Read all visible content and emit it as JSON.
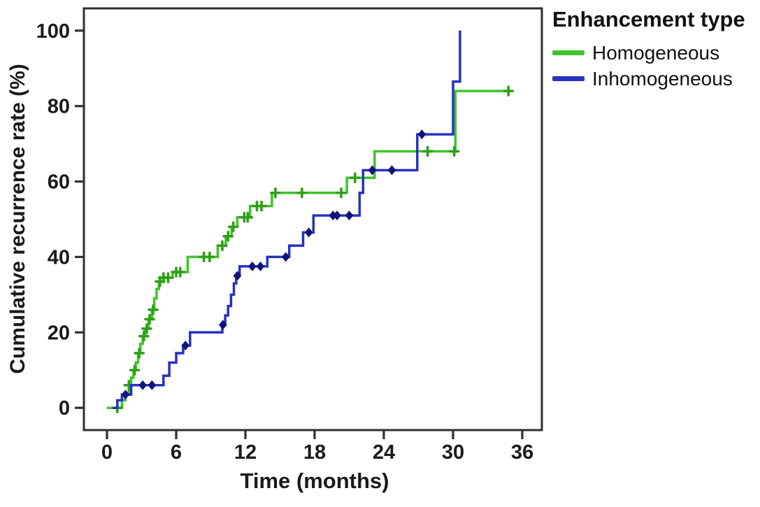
{
  "figure": {
    "background": "#ffffff",
    "axis_color": "#2f2f2f",
    "text_color": "#1a1a1a"
  },
  "chart_data": {
    "type": "line",
    "subtype": "kaplan-meier-step",
    "title": "",
    "xlabel": "Time (months)",
    "ylabel": "Cumulative recurrence rate (%)",
    "x_ticks": [
      0,
      6,
      12,
      18,
      24,
      30,
      36
    ],
    "y_ticks": [
      0,
      20,
      40,
      60,
      80,
      100
    ],
    "xlim": [
      -2.0,
      37.7
    ],
    "ylim": [
      -5.9,
      105.9
    ],
    "grid": false,
    "legend": {
      "title": "Enhancement type",
      "position": "top-right-outside",
      "entries": [
        {
          "label": "Homogeneous",
          "color": "#3fc32a"
        },
        {
          "label": "Inhomogeneous",
          "color": "#2632c0"
        }
      ]
    },
    "series": [
      {
        "name": "Homogeneous",
        "color": "#3fc32a",
        "censor_color": "#2da015",
        "censor_shape": "plus",
        "steps": [
          [
            0.0,
            0
          ],
          [
            1.3,
            2
          ],
          [
            1.6,
            4
          ],
          [
            1.9,
            6
          ],
          [
            2.1,
            8
          ],
          [
            2.3,
            10
          ],
          [
            2.5,
            12
          ],
          [
            2.7,
            14.5
          ],
          [
            2.9,
            17
          ],
          [
            3.1,
            19
          ],
          [
            3.3,
            21
          ],
          [
            3.6,
            23.5
          ],
          [
            3.9,
            26
          ],
          [
            4.1,
            29
          ],
          [
            4.3,
            31.5
          ],
          [
            4.5,
            33.5
          ],
          [
            4.9,
            34.5
          ],
          [
            5.7,
            36
          ],
          [
            7.0,
            40
          ],
          [
            9.6,
            43
          ],
          [
            10.3,
            45.5
          ],
          [
            10.8,
            48
          ],
          [
            11.3,
            50.5
          ],
          [
            12.4,
            53.5
          ],
          [
            14.3,
            57
          ],
          [
            20.8,
            61
          ],
          [
            23.2,
            68
          ],
          [
            30.2,
            84
          ],
          [
            34.8,
            84
          ]
        ],
        "censors": [
          [
            0.9,
            0
          ],
          [
            1.9,
            6
          ],
          [
            2.4,
            10
          ],
          [
            2.8,
            14.5
          ],
          [
            3.2,
            19
          ],
          [
            3.45,
            21
          ],
          [
            3.7,
            23.5
          ],
          [
            4.0,
            26
          ],
          [
            4.6,
            33.5
          ],
          [
            4.9,
            34.5
          ],
          [
            5.3,
            34.5
          ],
          [
            6.0,
            36
          ],
          [
            6.35,
            36
          ],
          [
            8.4,
            40
          ],
          [
            8.9,
            40
          ],
          [
            10.0,
            43
          ],
          [
            10.5,
            45.5
          ],
          [
            10.95,
            48
          ],
          [
            11.9,
            50.5
          ],
          [
            12.2,
            50.5
          ],
          [
            13.0,
            53.5
          ],
          [
            13.4,
            53.5
          ],
          [
            14.6,
            57
          ],
          [
            16.9,
            57
          ],
          [
            20.3,
            57
          ],
          [
            21.5,
            61
          ],
          [
            27.8,
            68
          ],
          [
            30.1,
            68
          ],
          [
            34.8,
            84
          ]
        ]
      },
      {
        "name": "Inhomogeneous",
        "color": "#2632c0",
        "censor_color": "#12127a",
        "censor_shape": "diamond",
        "steps": [
          [
            0.5,
            0
          ],
          [
            0.9,
            2
          ],
          [
            1.3,
            3.5
          ],
          [
            2.1,
            6
          ],
          [
            4.9,
            8.5
          ],
          [
            5.4,
            12
          ],
          [
            6.0,
            14.5
          ],
          [
            6.6,
            16.5
          ],
          [
            7.2,
            20
          ],
          [
            10.0,
            22
          ],
          [
            10.25,
            24.5
          ],
          [
            10.5,
            27
          ],
          [
            10.75,
            30
          ],
          [
            11.0,
            33
          ],
          [
            11.2,
            35
          ],
          [
            11.5,
            37.5
          ],
          [
            13.9,
            40
          ],
          [
            15.8,
            43
          ],
          [
            17.0,
            46.5
          ],
          [
            17.9,
            51
          ],
          [
            21.9,
            57
          ],
          [
            22.2,
            63
          ],
          [
            26.9,
            72.5
          ],
          [
            30.0,
            86.5
          ],
          [
            30.6,
            100
          ]
        ],
        "censors": [
          [
            1.6,
            3.5
          ],
          [
            3.1,
            6
          ],
          [
            3.9,
            6
          ],
          [
            6.8,
            16.5
          ],
          [
            10.05,
            22
          ],
          [
            11.3,
            35
          ],
          [
            12.6,
            37.5
          ],
          [
            13.3,
            37.5
          ],
          [
            15.5,
            40
          ],
          [
            17.5,
            46.5
          ],
          [
            19.6,
            51
          ],
          [
            19.95,
            51
          ],
          [
            21.0,
            51
          ],
          [
            23.0,
            63
          ],
          [
            24.7,
            63
          ],
          [
            27.3,
            72.5
          ]
        ]
      }
    ]
  }
}
